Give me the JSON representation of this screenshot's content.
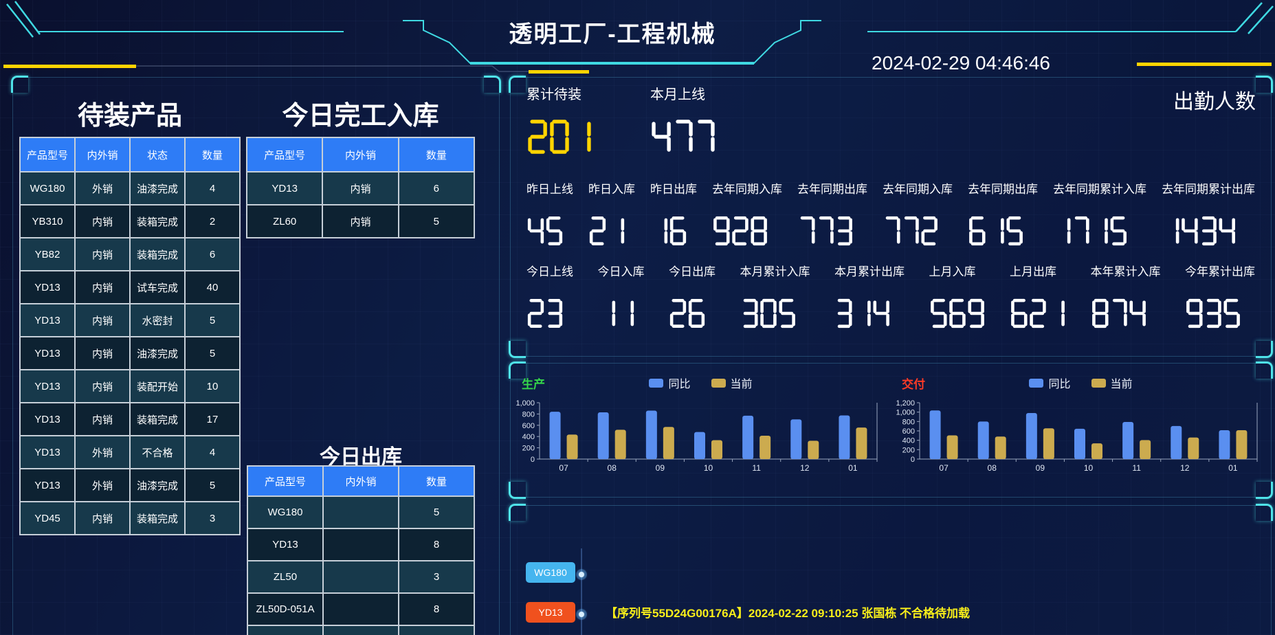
{
  "header": {
    "title": "透明工厂-工程机械",
    "datetime": "2024-02-29 04:46:46"
  },
  "pending_table": {
    "title": "待装产品",
    "columns": [
      "产品型号",
      "内外销",
      "状态",
      "数量"
    ],
    "rows": [
      [
        "WG180",
        "外销",
        "油漆完成",
        "4"
      ],
      [
        "YB310",
        "内销",
        "装箱完成",
        "2"
      ],
      [
        "YB82",
        "内销",
        "装箱完成",
        "6"
      ],
      [
        "YD13",
        "内销",
        "试车完成",
        "40"
      ],
      [
        "YD13",
        "内销",
        "水密封",
        "5"
      ],
      [
        "YD13",
        "内销",
        "油漆完成",
        "5"
      ],
      [
        "YD13",
        "内销",
        "装配开始",
        "10"
      ],
      [
        "YD13",
        "内销",
        "装箱完成",
        "17"
      ],
      [
        "YD13",
        "外销",
        "不合格",
        "4"
      ],
      [
        "YD13",
        "外销",
        "油漆完成",
        "5"
      ],
      [
        "YD45",
        "内销",
        "装箱完成",
        "3"
      ]
    ]
  },
  "inbound_table": {
    "title": "今日完工入库",
    "columns": [
      "产品型号",
      "内外销",
      "数量"
    ],
    "rows": [
      [
        "YD13",
        "内销",
        "6"
      ],
      [
        "ZL60",
        "内销",
        "5"
      ]
    ]
  },
  "outbound_table": {
    "title": "今日出库",
    "columns": [
      "产品型号",
      "内外销",
      "数量"
    ],
    "rows": [
      [
        "WG180",
        "",
        "5"
      ],
      [
        "YD13",
        "",
        "8"
      ],
      [
        "ZL50",
        "",
        "3"
      ],
      [
        "ZL50D-051A",
        "",
        "8"
      ]
    ]
  },
  "stats": {
    "total_pending": {
      "label": "累计待装",
      "value": "201",
      "color": "#ffd400"
    },
    "month_online": {
      "label": "本月上线",
      "value": "477",
      "color": "#ffffff"
    },
    "attendance_label": "出勤人数",
    "row1": [
      {
        "label": "昨日上线",
        "value": "45"
      },
      {
        "label": "昨日入库",
        "value": "21"
      },
      {
        "label": "昨日出库",
        "value": "16"
      },
      {
        "label": "去年同期入库",
        "value": "928"
      },
      {
        "label": "去年同期出库",
        "value": "773"
      },
      {
        "label": "去年同期入库",
        "value": "772"
      },
      {
        "label": "去年同期出库",
        "value": "615"
      },
      {
        "label": "去年同期累计入库",
        "value": "1715"
      },
      {
        "label": "去年同期累计出库",
        "value": "1434"
      }
    ],
    "row2": [
      {
        "label": "今日上线",
        "value": "23"
      },
      {
        "label": "今日入库",
        "value": "11"
      },
      {
        "label": "今日出库",
        "value": "26"
      },
      {
        "label": "本月累计入库",
        "value": "305"
      },
      {
        "label": "本月累计出库",
        "value": "314"
      },
      {
        "label": "上月入库",
        "value": "569"
      },
      {
        "label": "上月出库",
        "value": "621"
      },
      {
        "label": "本年累计入库",
        "value": "874"
      },
      {
        "label": "今年累计出库",
        "value": "935"
      }
    ]
  },
  "chart_data": [
    {
      "type": "bar",
      "name": "生产",
      "name_color": "#35d74a",
      "categories": [
        "07",
        "08",
        "09",
        "10",
        "11",
        "12",
        "01"
      ],
      "series": [
        {
          "name": "同比",
          "color": "#5a8ff0",
          "values": [
            840,
            830,
            860,
            480,
            770,
            705,
            775
          ]
        },
        {
          "name": "当前",
          "color": "#ccab4f",
          "values": [
            435,
            520,
            570,
            335,
            415,
            325,
            560
          ]
        }
      ],
      "ylim": [
        0,
        1000
      ],
      "ytick": 200,
      "legend_position": "top-center",
      "grid": false
    },
    {
      "type": "bar",
      "name": "交付",
      "name_color": "#ff3b26",
      "categories": [
        "07",
        "08",
        "09",
        "10",
        "11",
        "12",
        "01"
      ],
      "series": [
        {
          "name": "同比",
          "color": "#5a8ff0",
          "values": [
            1035,
            800,
            980,
            645,
            790,
            705,
            615
          ]
        },
        {
          "name": "当前",
          "color": "#ccab4f",
          "values": [
            505,
            480,
            655,
            335,
            405,
            460,
            615
          ]
        }
      ],
      "ylim": [
        0,
        1200
      ],
      "ytick": 200,
      "legend_position": "top-center",
      "grid": false
    }
  ],
  "timeline": {
    "tags": [
      {
        "label": "WG180",
        "color": "#45b5ef"
      },
      {
        "label": "YD13",
        "color": "#f0511e"
      }
    ],
    "message": "【序列号55D24G00176A】2024-02-22 09:10:25 张国栋 不合格待加载"
  },
  "colors": {
    "accent_cyan": "#4fe3e9",
    "accent_yellow": "#ffd400",
    "table_header_blue": "#2e7cf6",
    "bar_blue": "#5a8ff0",
    "bar_gold": "#ccab4f",
    "tag_blue": "#45b5ef",
    "tag_orange": "#f0511e",
    "production_green": "#35d74a",
    "delivery_red": "#ff3b26"
  }
}
